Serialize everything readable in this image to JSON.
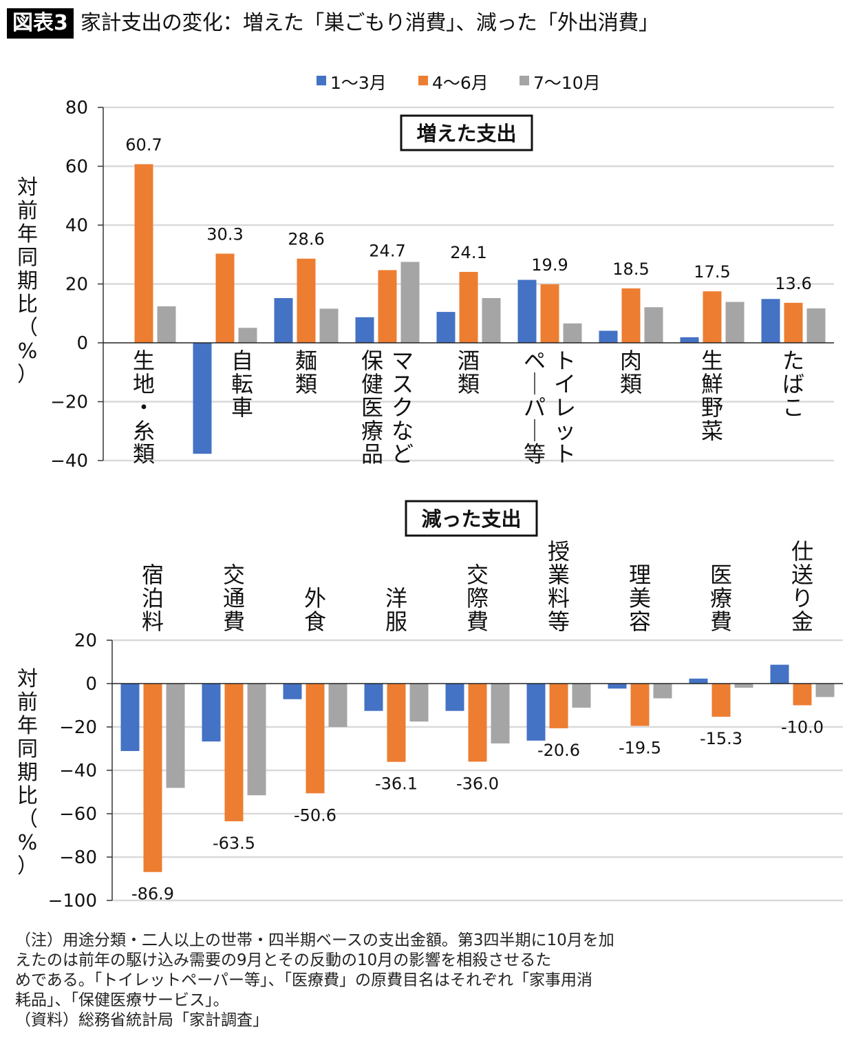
{
  "header": {
    "badge": "図表3",
    "title": "家計支出の変化：増えた「巣ごもり消費」、減った「外出消費」"
  },
  "legend": [
    {
      "label": "1〜3月",
      "color": "#4472C4"
    },
    {
      "label": "4〜6月",
      "color": "#ED7D31"
    },
    {
      "label": "7〜10月",
      "color": "#A5A5A5"
    }
  ],
  "chart_data": [
    {
      "type": "bar",
      "title": "増えた支出",
      "ylabel": "対前年同期比（%）",
      "ylim": [
        -40,
        80
      ],
      "yticks": [
        80,
        60,
        40,
        20,
        0,
        -20,
        -40
      ],
      "ytick_labels": [
        "80",
        "60",
        "40",
        "20",
        "0",
        "−20",
        "−40"
      ],
      "grid": true,
      "legend_position": "top-center",
      "categories": [
        "生地・糸類",
        "自転車",
        "麺類",
        "保健医療品マスクなど",
        "酒類",
        "トイレットペーパー等",
        "肉類",
        "生鮮野菜",
        "たばこ"
      ],
      "category_label_columns": [
        [
          "生地・糸類"
        ],
        [
          "自転車"
        ],
        [
          "麺類"
        ],
        [
          "マスクなど",
          "保健医療品"
        ],
        [
          "酒類"
        ],
        [
          "トイレット",
          "ペーパー等"
        ],
        [
          "肉類"
        ],
        [
          "生鮮野菜"
        ],
        [
          "たばこ"
        ]
      ],
      "series": [
        {
          "name": "1〜3月",
          "values": [
            0,
            -37.7,
            15.2,
            8.7,
            10.5,
            21.4,
            4.1,
            1.9,
            14.9
          ]
        },
        {
          "name": "4〜6月",
          "values": [
            60.7,
            30.3,
            28.6,
            24.7,
            24.1,
            19.9,
            18.5,
            17.5,
            13.6
          ]
        },
        {
          "name": "7〜10月",
          "values": [
            12.4,
            5.1,
            11.6,
            27.5,
            15.2,
            6.6,
            12.1,
            13.9,
            11.7
          ]
        }
      ],
      "data_labels": [
        "60.7",
        "30.3",
        "28.6",
        "24.7",
        "24.1",
        "19.9",
        "18.5",
        "17.5",
        "13.6"
      ]
    },
    {
      "type": "bar",
      "title": "減った支出",
      "ylabel": "対前年同期比（%）",
      "ylim": [
        -100,
        20
      ],
      "yticks": [
        20,
        0,
        -20,
        -40,
        -60,
        -80,
        -100
      ],
      "ytick_labels": [
        "20",
        "0",
        "−20",
        "−40",
        "−60",
        "−80",
        "−100"
      ],
      "grid": true,
      "categories": [
        "宿泊料",
        "交通費",
        "外食",
        "洋服",
        "交際費",
        "授業料等",
        "理美容",
        "医療費",
        "仕送り金"
      ],
      "series": [
        {
          "name": "1〜3月",
          "values": [
            -31.1,
            -26.7,
            -7.2,
            -12.6,
            -12.6,
            -26.3,
            -2.3,
            2.3,
            8.7
          ]
        },
        {
          "name": "4〜6月",
          "values": [
            -86.9,
            -63.5,
            -50.6,
            -36.1,
            -36.0,
            -20.6,
            -19.5,
            -15.3,
            -10.0
          ]
        },
        {
          "name": "7〜10月",
          "values": [
            -48.1,
            -51.5,
            -20.0,
            -17.5,
            -27.6,
            -11.1,
            -6.8,
            -1.9,
            -6.2
          ]
        }
      ],
      "data_labels": [
        "-86.9",
        "-63.5",
        "-50.6",
        "-36.1",
        "-36.0",
        "-20.6",
        "-19.5",
        "-15.3",
        "-10.0"
      ]
    }
  ],
  "notes": [
    "（注）用途分類・二人以上の世帯・四半期ベースの支出金額。第3四半期に10月を加",
    "えたのは前年の駆け込み需要の9月とその反動の10月の影響を相殺させるた",
    "めである。「トイレットペーパー等」、「医療費」の原費目名はそれぞれ「家事用消",
    "耗品」、「保健医療サービス」。",
    "（資料）総務省統計局「家計調査」"
  ]
}
